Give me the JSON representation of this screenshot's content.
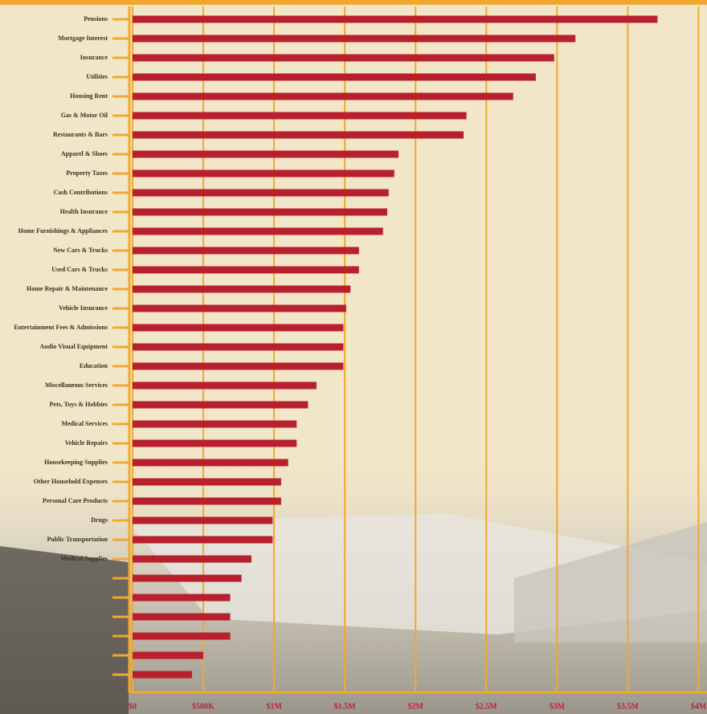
{
  "chart_data": {
    "type": "barh",
    "categories": [
      "Pensions",
      "Mortgage Interest",
      "Insurance",
      "Utilities",
      "Housing Rent",
      "Gas & Motor Oil",
      "Restaurants & Bars",
      "Apparel & Shoes",
      "Property Taxes",
      "Cash Contributions",
      "Health Insurance",
      "Home Furnishings & Appliances",
      "New Cars & Trucks",
      "Used Cars & Trucks",
      "Home Repair & Maintenance",
      "Vehicle Insurance",
      "Entertainment Fees & Admissions",
      "Audio Visual Equipment",
      "Education",
      "Miscellaneous Services",
      "Pets, Toys & Hobbies",
      "Medical Services",
      "Vehicle Repairs",
      "Housekeeping Supplies",
      "Other Household Expenses",
      "Personal Care Products",
      "Drugs",
      "Public Transportation",
      "Medical Supplies",
      null,
      null,
      null,
      null,
      null,
      null
    ],
    "values": [
      3.71,
      3.13,
      2.98,
      2.85,
      2.69,
      2.36,
      2.34,
      1.88,
      1.85,
      1.81,
      1.8,
      1.77,
      1.6,
      1.6,
      1.54,
      1.51,
      1.49,
      1.49,
      1.49,
      1.3,
      1.24,
      1.16,
      1.16,
      1.1,
      1.05,
      1.05,
      0.99,
      0.99,
      0.84,
      0.77,
      0.69,
      0.69,
      0.69,
      0.5,
      0.42
    ],
    "color": "#b8202e",
    "xlim": [
      0,
      4.06
    ],
    "xticks": [
      {
        "value": 0,
        "label": "$0"
      },
      {
        "value": 0.5,
        "label": "$500K"
      },
      {
        "value": 1,
        "label": "$1M"
      },
      {
        "value": 1.5,
        "label": "$1.5M"
      },
      {
        "value": 2,
        "label": "$2M"
      },
      {
        "value": 2.5,
        "label": "$2.5M"
      },
      {
        "value": 3,
        "label": "$3M"
      },
      {
        "value": 3.5,
        "label": "$3.5M"
      },
      {
        "value": 4,
        "label": "$4M"
      }
    ],
    "grid": true,
    "grid_color": "#f0a830"
  }
}
